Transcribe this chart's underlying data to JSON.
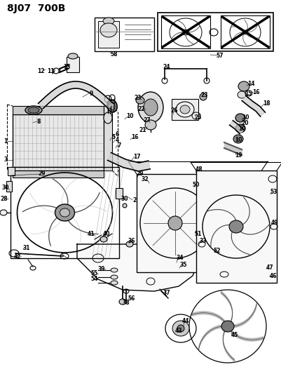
{
  "title": "8J07 700B",
  "bg_color": "#ffffff",
  "fig_width": 4.01,
  "fig_height": 5.33,
  "dpi": 100,
  "lc": "#000000",
  "tc": "#000000"
}
